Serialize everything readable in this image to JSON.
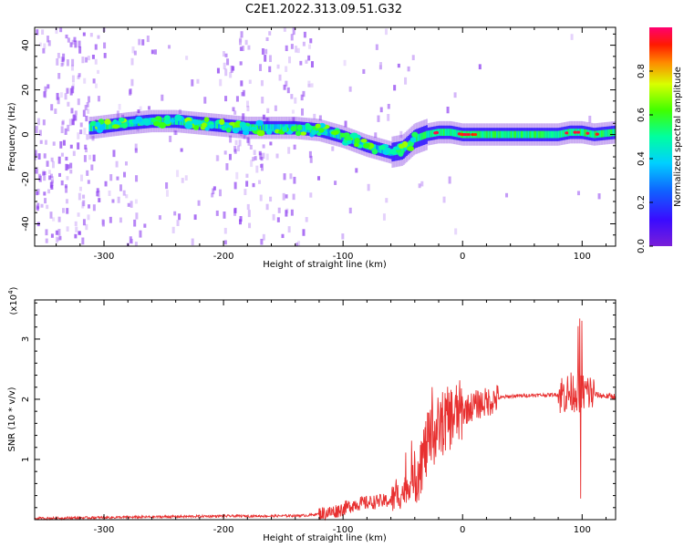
{
  "title": "C2E1.2022.313.09.51.G32",
  "colors": {
    "snr_line": "#e83030",
    "frame": "#000000",
    "scatter": "#8c3cf0"
  },
  "chart_data": [
    {
      "type": "heatmap",
      "xlabel": "Height of straight line (km)",
      "ylabel": "Frequency (Hz)",
      "xlim": [
        -358,
        128
      ],
      "ylim": [
        -50,
        48
      ],
      "xticks": [
        -300,
        -200,
        -100,
        0,
        100
      ],
      "yticks": [
        -40,
        -20,
        0,
        20,
        40
      ],
      "colorbar": {
        "label": "Normalized spectral amplitude",
        "range": [
          0.0,
          1.0
        ],
        "ticks": [
          "0.0",
          "0.2",
          "0.4",
          "0.6",
          "0.8"
        ],
        "tick_values": [
          0.0,
          0.2,
          0.4,
          0.6,
          0.8
        ],
        "colormap": "rainbow (violet-blue-cyan-green-yellow-red-magenta)"
      },
      "ridge": {
        "height_km": [
          -310,
          -280,
          -260,
          -240,
          -220,
          -200,
          -180,
          -160,
          -140,
          -120,
          -100,
          -80,
          -60,
          -50,
          -40,
          -30,
          -20,
          -10,
          0,
          20,
          40,
          60,
          80,
          90,
          100,
          110,
          128
        ],
        "frequency_hz": [
          3,
          5,
          6,
          6,
          5,
          4,
          3,
          3,
          3,
          2,
          -1,
          -5,
          -8,
          -7,
          -2,
          0,
          1,
          1,
          0,
          0,
          0,
          0,
          0,
          1,
          1,
          0,
          1
        ]
      }
    },
    {
      "type": "line",
      "xlabel": "Height of straight line (km)",
      "ylabel": "SNR (10 * v/v)",
      "y_multiplier": "(x10^4)",
      "y_multiplier_base": "(x10",
      "y_multiplier_exp": "4",
      "y_multiplier_close": ")",
      "xlim": [
        -358,
        128
      ],
      "ylim": [
        0,
        3.65
      ],
      "xticks": [
        -300,
        -200,
        -100,
        0,
        100
      ],
      "yticks": [
        1,
        2,
        3
      ],
      "series": [
        {
          "x": [
            -358,
            -320,
            -280,
            -240,
            -200,
            -160,
            -130,
            -110,
            -100,
            -90,
            -80,
            -70,
            -60,
            -50,
            -40,
            -30,
            -20,
            -10,
            0,
            10,
            20,
            30,
            40,
            50,
            60,
            70,
            80,
            90,
            95,
            100,
            105,
            110,
            120,
            128
          ],
          "y": [
            0.02,
            0.03,
            0.04,
            0.05,
            0.06,
            0.06,
            0.07,
            0.12,
            0.18,
            0.26,
            0.28,
            0.3,
            0.32,
            0.45,
            0.7,
            1.2,
            1.55,
            1.7,
            1.8,
            1.9,
            1.95,
            2.02,
            2.05,
            2.06,
            2.07,
            2.07,
            2.08,
            2.1,
            2.15,
            2.1,
            2.12,
            2.08,
            2.05,
            2.05
          ]
        }
      ]
    }
  ]
}
